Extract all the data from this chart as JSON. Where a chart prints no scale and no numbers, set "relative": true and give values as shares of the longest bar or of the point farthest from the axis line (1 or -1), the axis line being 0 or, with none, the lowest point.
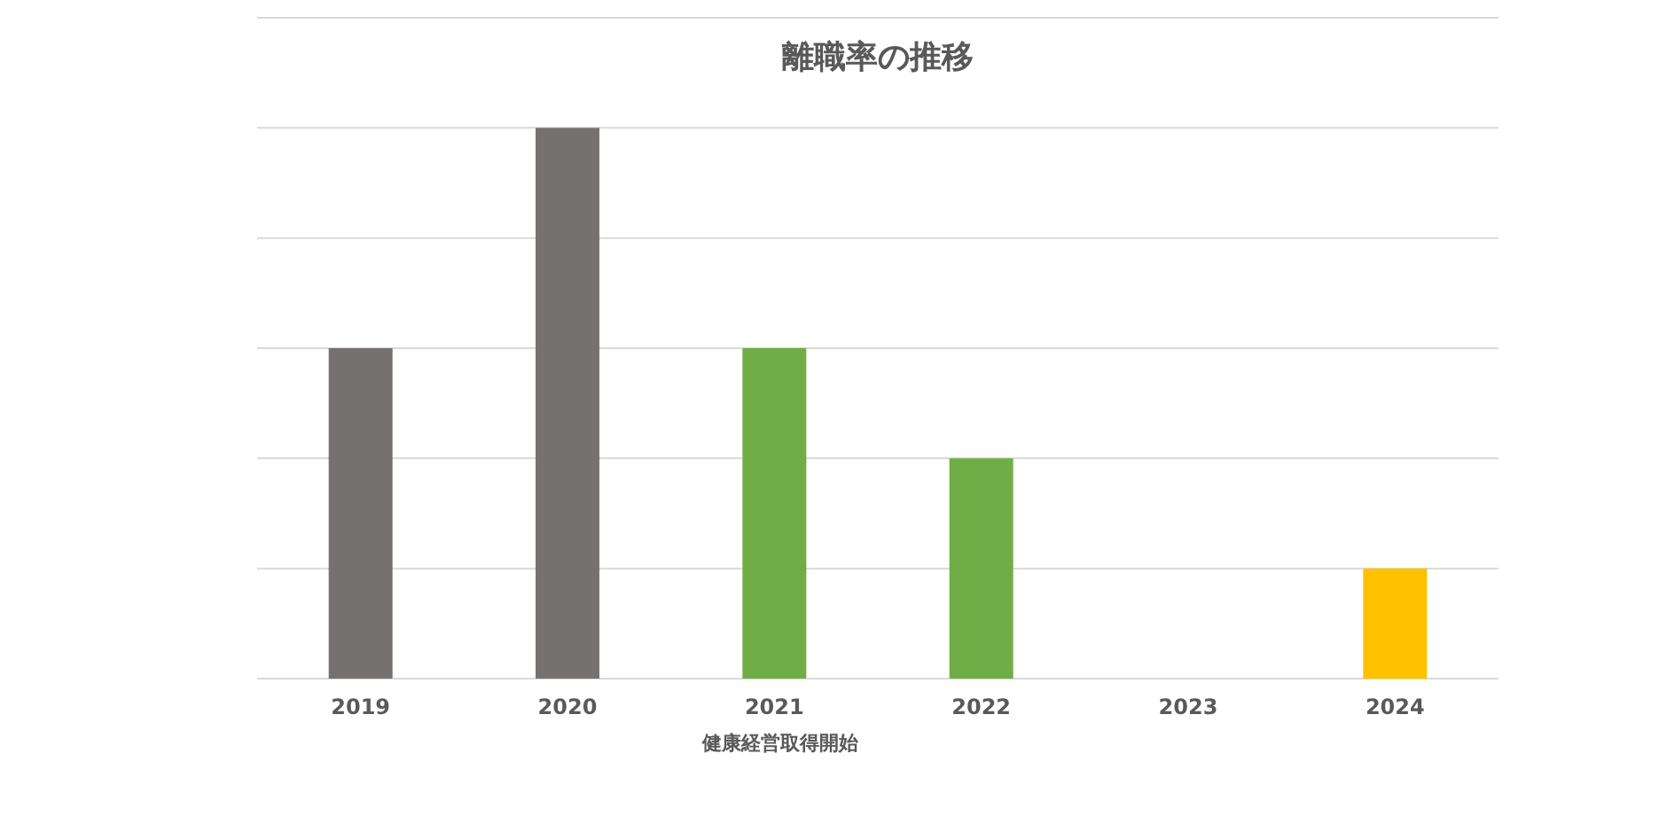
{
  "chart_data": {
    "type": "bar",
    "title": "離職率の推移",
    "relative": true,
    "grid": true,
    "categories": [
      "2019",
      "2020",
      "2021",
      "2022",
      "2023",
      "2024"
    ],
    "values": [
      0.6,
      1,
      0.6,
      0.4,
      0,
      0.2
    ],
    "colors": [
      "#767171",
      "#767171",
      "#70ad47",
      "#70ad47",
      "#70ad47",
      "#ffc000"
    ],
    "annotations": [
      "健康経営取得開始"
    ]
  }
}
